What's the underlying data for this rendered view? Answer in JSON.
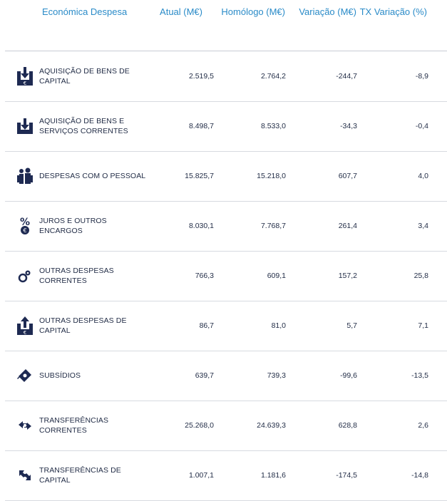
{
  "header": {
    "col_label": "Económica Despesa",
    "col_atual": "Atual (M€)",
    "col_homologo": "Homólogo (M€)",
    "col_variacao": "Variação (M€)",
    "col_tx": "TX Variação (%)"
  },
  "colors": {
    "header_text": "#2a8bc8",
    "icon": "#1e2a52",
    "divider": "#d7dae0"
  },
  "rows": [
    {
      "icon": "capital-acquisition-icon",
      "label": "AQUISIÇÃO DE BENS DE CAPITAL",
      "atual": "2.519,5",
      "homologo": "2.764,2",
      "variacao": "-244,7",
      "tx": "-8,9"
    },
    {
      "icon": "goods-services-acquisition-icon",
      "label": "AQUISIÇÃO DE BENS E SERVIÇOS CORRENTES",
      "atual": "8.498,7",
      "homologo": "8.533,0",
      "variacao": "-34,3",
      "tx": "-0,4"
    },
    {
      "icon": "people-icon",
      "label": "DESPESAS COM O PESSOAL",
      "atual": "15.825,7",
      "homologo": "15.218,0",
      "variacao": "607,7",
      "tx": "4,0"
    },
    {
      "icon": "percent-euro-icon",
      "label": "JUROS E OUTROS ENCARGOS",
      "atual": "8.030,1",
      "homologo": "7.768,7",
      "variacao": "261,4",
      "tx": "3,4"
    },
    {
      "icon": "coins-icon",
      "label": "OUTRAS DESPESAS CORRENTES",
      "atual": "766,3",
      "homologo": "609,1",
      "variacao": "157,2",
      "tx": "25,8"
    },
    {
      "icon": "capital-expense-icon",
      "label": "OUTRAS DESPESAS DE CAPITAL",
      "atual": "86,7",
      "homologo": "81,0",
      "variacao": "5,7",
      "tx": "7,1"
    },
    {
      "icon": "banknotes-icon",
      "label": "SUBSÍDIOS",
      "atual": "639,7",
      "homologo": "739,3",
      "variacao": "-99,6",
      "tx": "-13,5"
    },
    {
      "icon": "current-transfer-icon",
      "label": "TRANSFERÊNCIAS CORRENTES",
      "atual": "25.268,0",
      "homologo": "24.639,3",
      "variacao": "628,8",
      "tx": "2,6"
    },
    {
      "icon": "capital-transfer-icon",
      "label": "TRANSFERÊNCIAS DE CAPITAL",
      "atual": "1.007,1",
      "homologo": "1.181,6",
      "variacao": "-174,5",
      "tx": "-14,8"
    }
  ]
}
